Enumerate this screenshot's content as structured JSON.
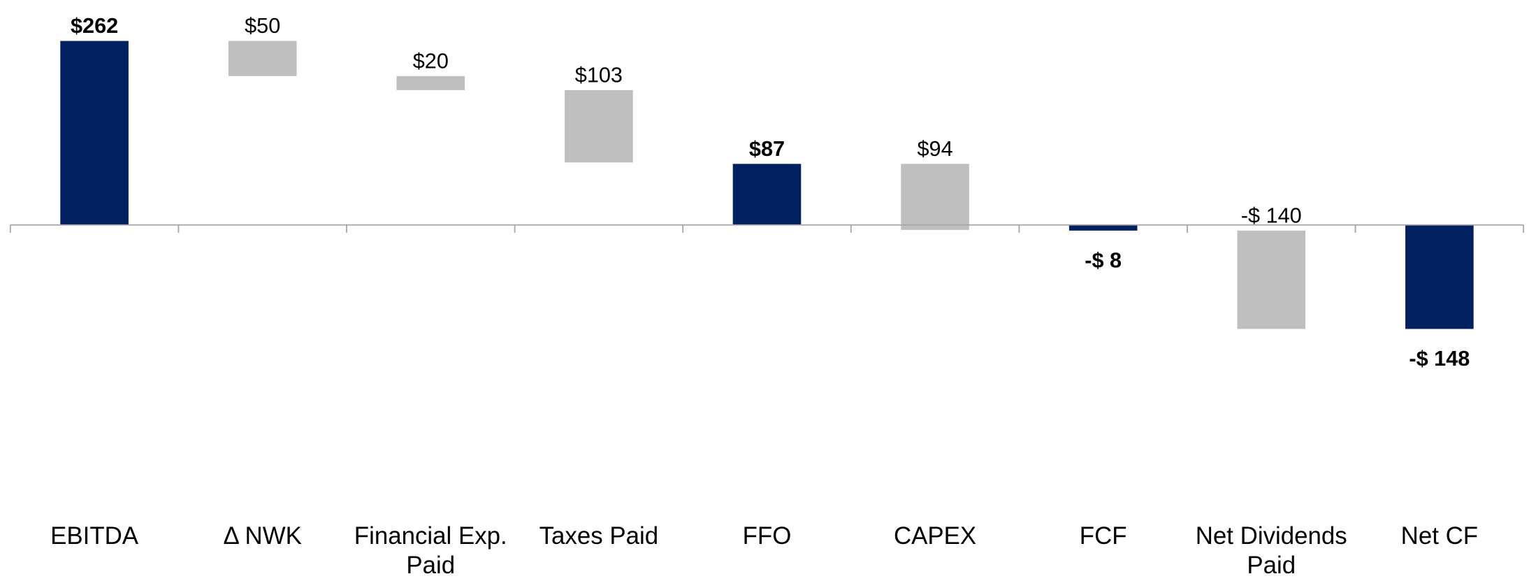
{
  "chart_data": {
    "type": "waterfall",
    "categories": [
      "EBITDA",
      "Δ NWK",
      "Financial Exp. Paid",
      "Taxes Paid",
      "FFO",
      "CAPEX",
      "FCF",
      "Net Dividends Paid",
      "Net CF"
    ],
    "values": [
      262,
      -50,
      -20,
      -103,
      87,
      -94,
      -8,
      -140,
      -148
    ],
    "value_labels": [
      "$262",
      "$50",
      "$20",
      "$103",
      "$87",
      "$94",
      "-$ 8",
      "-$ 140",
      "-$ 148"
    ],
    "totals": [
      true,
      false,
      false,
      false,
      true,
      false,
      true,
      false,
      true
    ],
    "total_color": "#002060",
    "change_color": "#bfbfbf",
    "ylim": [
      -400,
      262
    ]
  }
}
